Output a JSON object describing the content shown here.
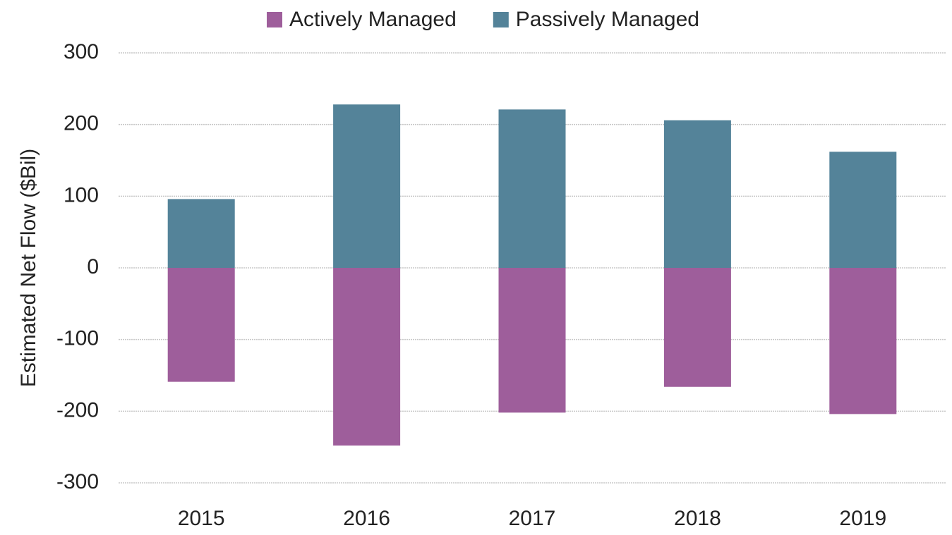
{
  "chart_data": {
    "type": "bar",
    "stacked": true,
    "y_label": "Estimated Net Flow ($Bil)",
    "categories": [
      "2015",
      "2016",
      "2017",
      "2018",
      "2019"
    ],
    "series": [
      {
        "name": "Actively Managed",
        "color": "#9e5e9b",
        "values": [
          -159,
          -248,
          -202,
          -166,
          -204
        ]
      },
      {
        "name": "Passively Managed",
        "color": "#548399",
        "values": [
          96,
          228,
          221,
          206,
          162
        ]
      }
    ],
    "ylim": [
      -300,
      300
    ],
    "yticks": [
      -300,
      -200,
      -100,
      0,
      100,
      200,
      300
    ],
    "grid": true,
    "legend": "top"
  }
}
